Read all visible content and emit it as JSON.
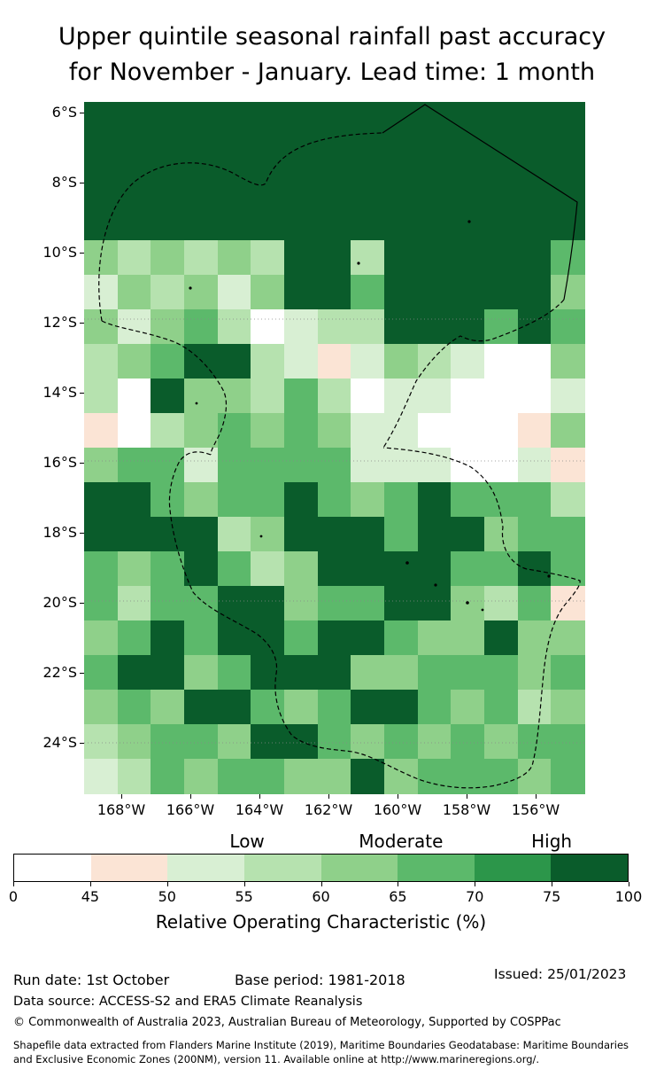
{
  "title": {
    "line1": "Upper quintile seasonal rainfall past accuracy",
    "line2": "for November - January. Lead time: 1 month"
  },
  "chart_data": {
    "type": "heatmap",
    "title": "Upper quintile seasonal rainfall past accuracy for November - January. Lead time: 1 month",
    "lat_ticks": [
      "6°S",
      "8°S",
      "10°S",
      "12°S",
      "14°S",
      "16°S",
      "18°S",
      "20°S",
      "22°S",
      "24°S"
    ],
    "lon_ticks": [
      "168°W",
      "166°W",
      "164°W",
      "162°W",
      "160°W",
      "158°W",
      "156°W"
    ],
    "value_bins": [
      0,
      45,
      50,
      55,
      60,
      65,
      70,
      75,
      100
    ],
    "bin_colors": [
      "#ffffff",
      "#fbe4d5",
      "#d8efd3",
      "#b6e2af",
      "#8fd08a",
      "#5cb96b",
      "#2c964a",
      "#0a5c2b"
    ],
    "grid_note": "rows = 1° latitude bands from ~6°S to ~25°S (top to bottom); cols = 1° longitude from ~169°W to ~155°W (west to east); digit = color bin index",
    "grid": [
      "777777777777777",
      "777777777777777",
      "777777777777777",
      "777777777777777",
      "434343773777775",
      "243424775777774",
      "424530233777575",
      "345773212432004",
      "307443530220002",
      "103454542200014",
      "455255552220021",
      "775455754575553",
      "777734777577455",
      "545753477775575",
      "535577455774351",
      "457577577544744",
      "577457774455545",
      "454775457754534",
      "345547754545455",
      "235455447455545"
    ],
    "colorbar": {
      "ticks": [
        "0",
        "45",
        "50",
        "55",
        "60",
        "65",
        "70",
        "75",
        "100"
      ],
      "regions": [
        "Low",
        "Moderate",
        "High"
      ],
      "region_positions": [
        0.38,
        0.63,
        0.875
      ],
      "label": "Relative Operating Characteristic (%)"
    },
    "legend_position": "bottom",
    "grid_lines": "faint dotted horizontal graticule at 12°S, 16°S, 20°S, 24°S",
    "overlays": "dashed EEZ maritime boundaries, one solid boundary segment in the north-east, small island dots"
  },
  "footer": {
    "run_date": "Run date: 1st October",
    "base_period": "Base period: 1981-2018",
    "issued": "Issued: 25/01/2023",
    "data_source": "Data source: ACCESS-S2 and ERA5 Climate Reanalysis",
    "copyright": "© Commonwealth of Australia 2023, Australian Bureau of Meteorology, Supported by COSPPac",
    "shapefile_line1": "Shapefile data extracted from Flanders Marine Institute (2019), Maritime Boundaries Geodatabase: Maritime Boundaries",
    "shapefile_line2": "and Exclusive Economic Zones (200NM), version 11. Available online at http://www.marineregions.org/."
  }
}
